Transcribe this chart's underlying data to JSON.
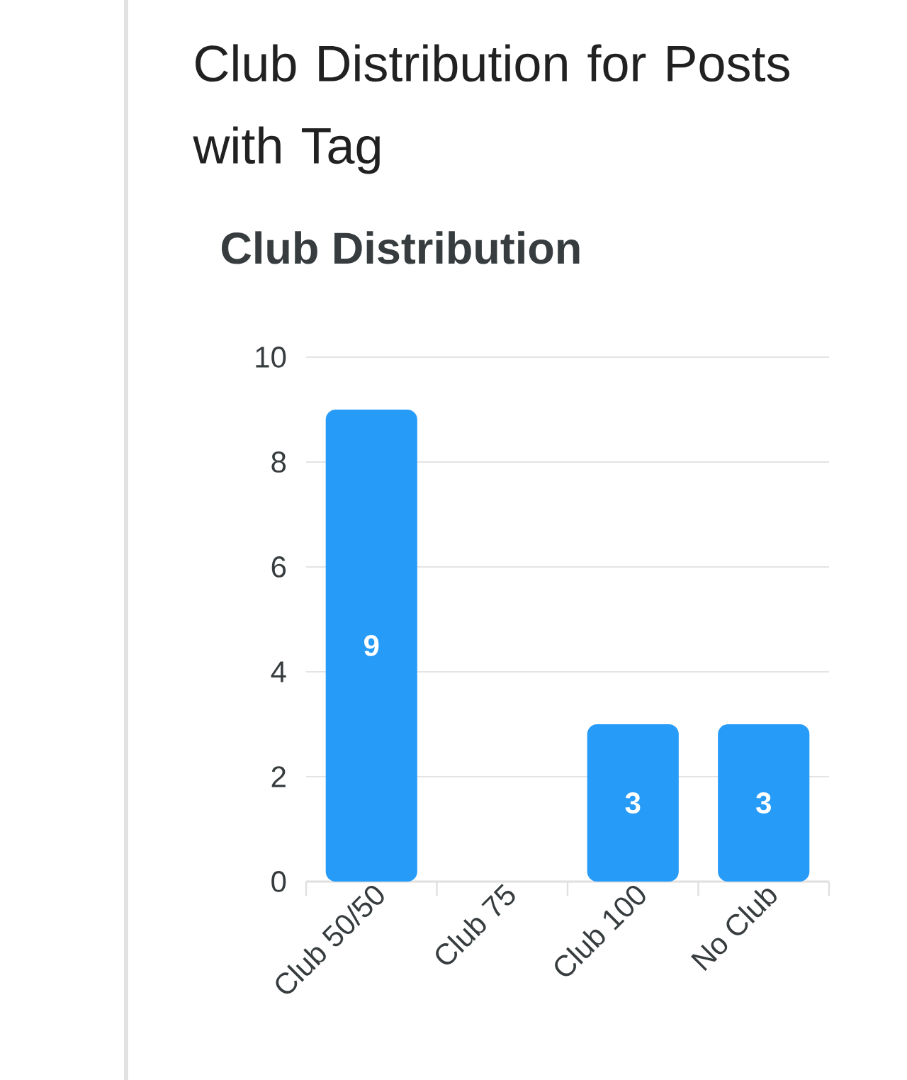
{
  "chart_data": {
    "type": "bar",
    "title": "Club Distribution for Posts with Tag",
    "subtitle": "Club Distribution",
    "categories": [
      "Club 50/50",
      "Club 75",
      "Club 100",
      "No Club"
    ],
    "values": [
      9,
      0,
      3,
      3
    ],
    "color": "#269bf8",
    "value_labels": [
      "9",
      null,
      "3",
      "3"
    ],
    "ylim": [
      0,
      10
    ],
    "yticks": [
      0,
      2,
      4,
      6,
      8,
      10
    ],
    "grid": "y"
  }
}
